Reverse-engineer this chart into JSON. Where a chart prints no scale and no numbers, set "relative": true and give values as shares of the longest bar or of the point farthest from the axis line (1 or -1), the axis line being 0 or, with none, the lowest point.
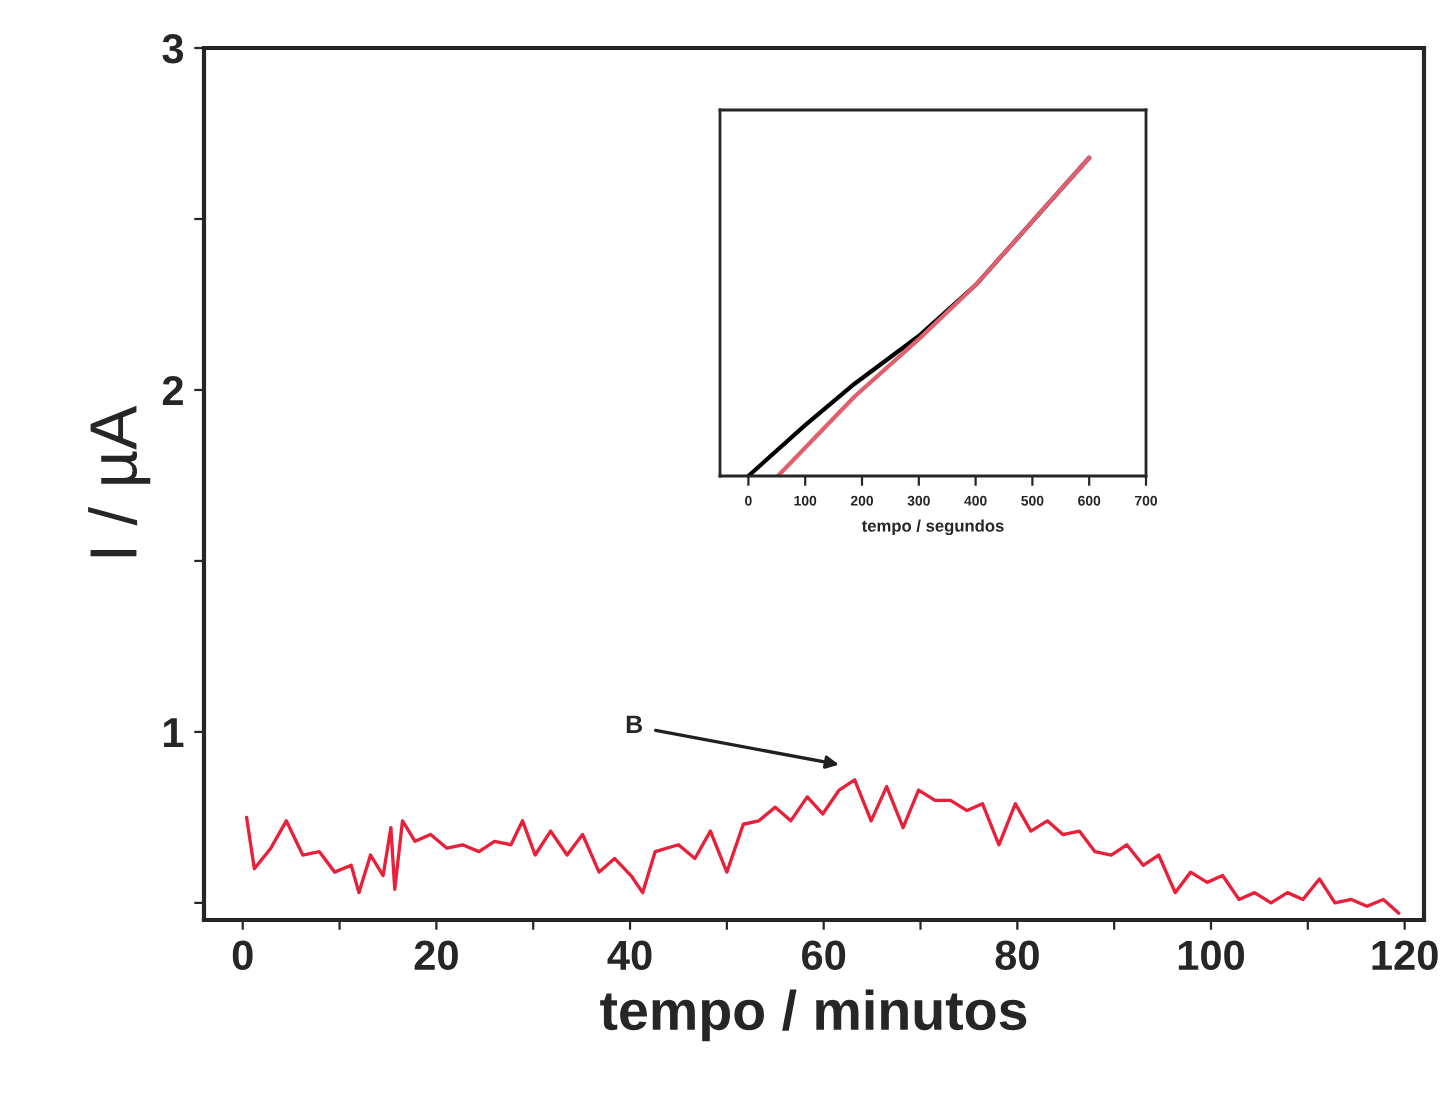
{
  "chart_data": [
    {
      "type": "line",
      "xlabel": "tempo / minutos",
      "ylabel": "I / µA",
      "xlim": [
        -4,
        122
      ],
      "ylim": [
        0.45,
        3
      ],
      "xticks": [
        0,
        {
          "value": 10,
          "label": null
        },
        20,
        {
          "value": 30,
          "label": null
        },
        40,
        {
          "value": 50,
          "label": null
        },
        60,
        {
          "value": 70,
          "label": null
        },
        80,
        {
          "value": 90,
          "label": null
        },
        100,
        {
          "value": 110,
          "label": null
        },
        120
      ],
      "yticks": [
        {
          "value": 0.5,
          "label": null
        },
        1,
        {
          "value": 1.5,
          "label": null
        },
        2,
        {
          "value": 2.5,
          "label": null
        },
        3
      ],
      "grid": false,
      "legend": false,
      "annotations": [
        "B"
      ],
      "series": [
        {
          "color": "#e8203a",
          "x": [
            0.4,
            1.2,
            2.9,
            4.5,
            6.2,
            7.9,
            9.5,
            11.2,
            12.0,
            13.2,
            14.5,
            15.3,
            15.7,
            16.5,
            17.8,
            19.4,
            21.1,
            22.7,
            24.4,
            26.0,
            27.7,
            28.9,
            30.2,
            31.8,
            33.5,
            35.1,
            36.8,
            38.4,
            40.1,
            41.3,
            42.6,
            45.0,
            46.7,
            48.3,
            50.0,
            51.7,
            53.3,
            55.0,
            56.6,
            58.3,
            59.9,
            61.6,
            63.2,
            64.9,
            66.5,
            68.2,
            69.8,
            71.5,
            73.1,
            74.8,
            76.4,
            78.1,
            79.8,
            81.4,
            83.1,
            84.7,
            86.4,
            88.0,
            89.7,
            91.3,
            93.0,
            94.6,
            96.3,
            97.9,
            99.6,
            101.2,
            102.9,
            104.5,
            106.2,
            107.9,
            109.5,
            111.2,
            112.8,
            114.5,
            116.1,
            117.8,
            119.4
          ],
          "values": [
            0.75,
            0.6,
            0.66,
            0.74,
            0.64,
            0.65,
            0.59,
            0.61,
            0.53,
            0.64,
            0.58,
            0.72,
            0.54,
            0.74,
            0.68,
            0.7,
            0.66,
            0.67,
            0.65,
            0.68,
            0.67,
            0.74,
            0.64,
            0.71,
            0.64,
            0.7,
            0.59,
            0.63,
            0.58,
            0.53,
            0.65,
            0.67,
            0.63,
            0.71,
            0.59,
            0.73,
            0.74,
            0.78,
            0.74,
            0.81,
            0.76,
            0.83,
            0.86,
            0.74,
            0.84,
            0.72,
            0.83,
            0.8,
            0.8,
            0.77,
            0.79,
            0.67,
            0.79,
            0.71,
            0.74,
            0.7,
            0.71,
            0.65,
            0.64,
            0.67,
            0.61,
            0.64,
            0.53,
            0.59,
            0.56,
            0.58,
            0.51,
            0.53,
            0.5,
            0.53,
            0.51,
            0.57,
            0.5,
            0.51,
            0.49,
            0.51,
            0.47
          ]
        }
      ]
    },
    {
      "type": "line",
      "relative": true,
      "xlabel": "tempo / segundos",
      "xlim": [
        -50,
        700
      ],
      "xticks": [
        0,
        100,
        200,
        300,
        400,
        500,
        600,
        700
      ],
      "tick_labels": "x",
      "grid": false,
      "legend": false,
      "series": [
        {
          "color": "#000000",
          "x": [
            0,
            100,
            187,
            300,
            400,
            500,
            600
          ],
          "values": [
            0,
            0.16,
            0.29,
            0.44,
            0.6,
            0.8,
            1
          ]
        },
        {
          "color": "#e06070",
          "x": [
            52,
            187,
            300,
            400,
            500,
            600
          ],
          "values": [
            0,
            0.25,
            0.43,
            0.6,
            0.8,
            1
          ]
        }
      ]
    }
  ]
}
